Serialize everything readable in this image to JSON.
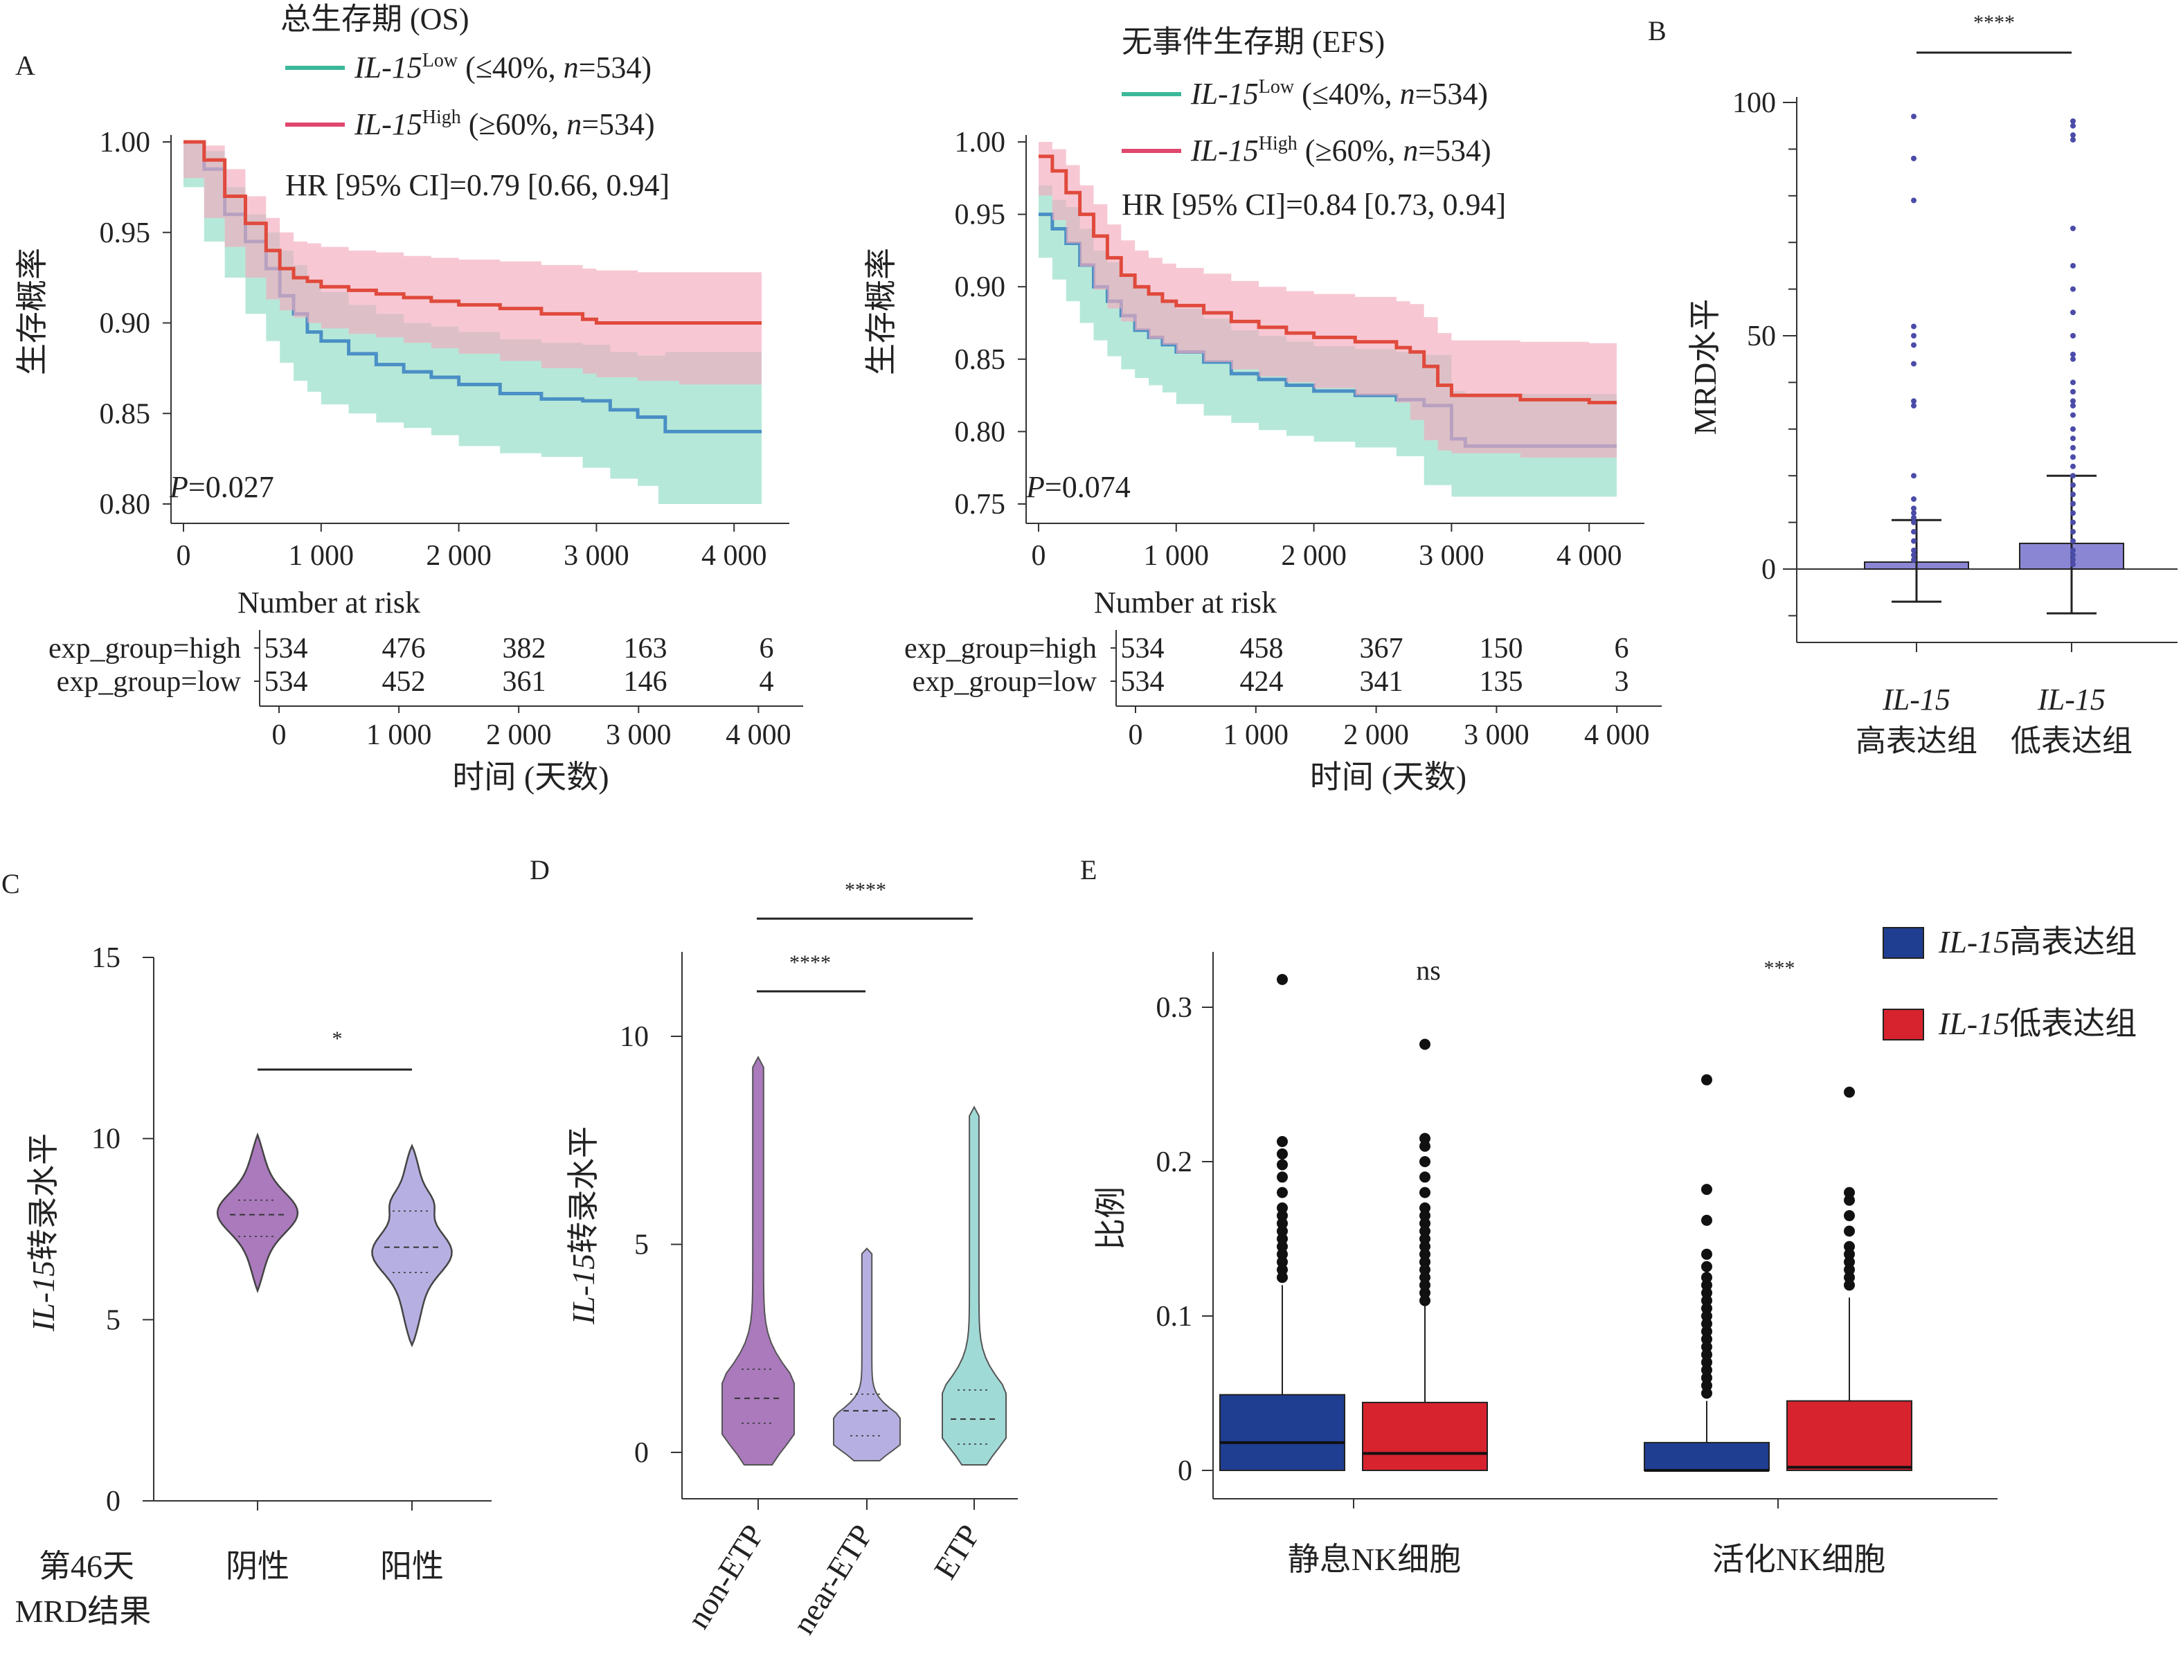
{
  "panel_letters": {
    "a": "A",
    "b": "B",
    "c": "C",
    "d": "D",
    "e": "E"
  },
  "colors": {
    "teal": "#3bb89a",
    "pink": "#e0476e",
    "teal_band": "#8fdcc4",
    "pink_band": "#f2aabd",
    "blue_line": "#4a8fc5",
    "red_line": "#e04a3c",
    "navy_box": "#1f3e92",
    "red_box": "#d7232e",
    "violin_purple": "#9b63b1",
    "violin_lav": "#a9a2dd",
    "violin_teal": "#8fd3d0",
    "mrd_box": "#8b86d4"
  },
  "km_shared": {
    "ylabel": "生存概率",
    "xlabel": "时间 (天数)",
    "risk_title": "Number at risk",
    "risk_rows": [
      "exp_group=high",
      "exp_group=low"
    ]
  },
  "chart_data": [
    {
      "type": "line",
      "panel": "A-OS",
      "title": "总生存期 (OS)",
      "legend": [
        {
          "gene": "IL-15",
          "sup": "Low",
          "detail": " (≤40%, ",
          "n": "n",
          "ndetail": "=534)"
        },
        {
          "gene": "IL-15",
          "sup": "High",
          "detail": " (≥60%, ",
          "n": "n",
          "ndetail": "=534)"
        }
      ],
      "hr": "HR [95% CI]=0.79 [0.66, 0.94]",
      "p_label": "P",
      "p_value": "=0.027",
      "xlim": [
        0,
        4200
      ],
      "ylim": [
        0.8,
        1.0
      ],
      "xticks": [
        0,
        1000,
        2000,
        3000,
        4000
      ],
      "xtick_labels": [
        "0",
        "1 000",
        "2 000",
        "3 000",
        "4 000"
      ],
      "yticks": [
        0.8,
        0.85,
        0.9,
        0.95,
        1.0
      ],
      "ytick_labels": [
        "0.80",
        "0.85",
        "0.90",
        "0.95",
        "1.00"
      ],
      "series": [
        {
          "color_key": "teal",
          "x": [
            0,
            150,
            300,
            450,
            600,
            700,
            800,
            900,
            1000,
            1200,
            1400,
            1600,
            1800,
            2000,
            2300,
            2600,
            2900,
            3100,
            3300,
            3450,
            3500,
            4000,
            4200
          ],
          "y": [
            1.0,
            0.985,
            0.96,
            0.945,
            0.93,
            0.915,
            0.905,
            0.895,
            0.89,
            0.883,
            0.877,
            0.873,
            0.87,
            0.866,
            0.861,
            0.858,
            0.857,
            0.852,
            0.848,
            0.848,
            0.84,
            0.84,
            0.84
          ],
          "band_lo": [
            1.0,
            0.975,
            0.945,
            0.925,
            0.905,
            0.89,
            0.878,
            0.868,
            0.862,
            0.855,
            0.85,
            0.845,
            0.842,
            0.838,
            0.832,
            0.828,
            0.826,
            0.82,
            0.814,
            0.81,
            0.8,
            0.8,
            0.8
          ],
          "band_hi": [
            1.0,
            0.995,
            0.975,
            0.96,
            0.95,
            0.94,
            0.932,
            0.922,
            0.917,
            0.91,
            0.905,
            0.9,
            0.898,
            0.895,
            0.891,
            0.889,
            0.888,
            0.884,
            0.882,
            0.882,
            0.884,
            0.884,
            0.884
          ]
        },
        {
          "color_key": "pink",
          "x": [
            0,
            150,
            300,
            450,
            600,
            700,
            800,
            900,
            1000,
            1200,
            1400,
            1600,
            1800,
            2000,
            2300,
            2600,
            2900,
            3000,
            3300,
            3600,
            4000,
            4200
          ],
          "y": [
            1.0,
            0.99,
            0.97,
            0.955,
            0.94,
            0.93,
            0.925,
            0.923,
            0.92,
            0.918,
            0.916,
            0.914,
            0.912,
            0.91,
            0.908,
            0.905,
            0.902,
            0.9,
            0.9,
            0.9,
            0.9,
            0.9
          ],
          "band_lo": [
            1.0,
            0.98,
            0.958,
            0.942,
            0.925,
            0.913,
            0.907,
            0.903,
            0.9,
            0.897,
            0.894,
            0.892,
            0.889,
            0.886,
            0.883,
            0.879,
            0.875,
            0.872,
            0.87,
            0.868,
            0.866,
            0.866
          ],
          "band_hi": [
            1.0,
            0.998,
            0.985,
            0.97,
            0.958,
            0.95,
            0.945,
            0.944,
            0.942,
            0.94,
            0.939,
            0.937,
            0.936,
            0.935,
            0.934,
            0.932,
            0.93,
            0.929,
            0.928,
            0.928,
            0.928,
            0.928
          ]
        }
      ],
      "risk_table": {
        "xticks": [
          0,
          1000,
          2000,
          3000,
          4000
        ],
        "xtick_labels": [
          "0",
          "1 000",
          "2 000",
          "3 000",
          "4 000"
        ],
        "high": [
          "534",
          "476",
          "382",
          "163",
          "6"
        ],
        "low": [
          "534",
          "452",
          "361",
          "146",
          "4"
        ]
      }
    },
    {
      "type": "line",
      "panel": "A-EFS",
      "title": "无事件生存期 (EFS)",
      "legend": [
        {
          "gene": "IL-15",
          "sup": "Low",
          "detail": " (≤40%, ",
          "n": "n",
          "ndetail": "=534)"
        },
        {
          "gene": "IL-15",
          "sup": "High",
          "detail": " (≥60%, ",
          "n": "n",
          "ndetail": "=534)"
        }
      ],
      "hr": "HR [95% CI]=0.84 [0.73, 0.94]",
      "p_label": "P",
      "p_value": "=0.074",
      "xlim": [
        0,
        4200
      ],
      "ylim": [
        0.75,
        1.0
      ],
      "xticks": [
        0,
        1000,
        2000,
        3000,
        4000
      ],
      "xtick_labels": [
        "0",
        "1 000",
        "2 000",
        "3 000",
        "4 000"
      ],
      "yticks": [
        0.75,
        0.8,
        0.85,
        0.9,
        0.95,
        1.0
      ],
      "ytick_labels": [
        "0.75",
        "0.80",
        "0.85",
        "0.90",
        "0.95",
        "1.00"
      ],
      "series": [
        {
          "color_key": "teal",
          "x": [
            0,
            100,
            200,
            300,
            400,
            500,
            600,
            700,
            800,
            900,
            1000,
            1200,
            1400,
            1600,
            1800,
            2000,
            2300,
            2600,
            2800,
            3000,
            3100,
            3500,
            4000,
            4200
          ],
          "y": [
            0.95,
            0.94,
            0.93,
            0.915,
            0.9,
            0.89,
            0.88,
            0.87,
            0.865,
            0.86,
            0.855,
            0.848,
            0.84,
            0.836,
            0.832,
            0.828,
            0.825,
            0.822,
            0.818,
            0.795,
            0.79,
            0.79,
            0.79,
            0.79
          ],
          "band_lo": [
            0.93,
            0.92,
            0.905,
            0.89,
            0.875,
            0.863,
            0.852,
            0.843,
            0.837,
            0.832,
            0.827,
            0.819,
            0.811,
            0.806,
            0.801,
            0.797,
            0.793,
            0.789,
            0.783,
            0.763,
            0.755,
            0.755,
            0.755,
            0.755
          ],
          "band_hi": [
            0.97,
            0.96,
            0.955,
            0.94,
            0.925,
            0.917,
            0.908,
            0.9,
            0.895,
            0.89,
            0.885,
            0.878,
            0.87,
            0.866,
            0.862,
            0.859,
            0.857,
            0.855,
            0.853,
            0.828,
            0.826,
            0.826,
            0.826,
            0.826
          ]
        },
        {
          "color_key": "pink",
          "x": [
            0,
            100,
            200,
            300,
            400,
            500,
            600,
            700,
            800,
            900,
            1000,
            1200,
            1400,
            1600,
            1800,
            2000,
            2300,
            2600,
            2700,
            2800,
            2900,
            3000,
            3500,
            4000,
            4200
          ],
          "y": [
            0.99,
            0.98,
            0.965,
            0.95,
            0.935,
            0.92,
            0.908,
            0.9,
            0.895,
            0.89,
            0.887,
            0.882,
            0.876,
            0.872,
            0.868,
            0.865,
            0.862,
            0.858,
            0.855,
            0.845,
            0.832,
            0.825,
            0.822,
            0.82,
            0.82
          ],
          "band_lo": [
            0.975,
            0.963,
            0.946,
            0.93,
            0.914,
            0.898,
            0.885,
            0.876,
            0.87,
            0.864,
            0.86,
            0.854,
            0.848,
            0.843,
            0.838,
            0.834,
            0.83,
            0.825,
            0.82,
            0.808,
            0.794,
            0.787,
            0.785,
            0.782,
            0.782
          ],
          "band_hi": [
            1.0,
            0.995,
            0.984,
            0.97,
            0.957,
            0.943,
            0.932,
            0.925,
            0.92,
            0.916,
            0.913,
            0.909,
            0.904,
            0.9,
            0.897,
            0.895,
            0.893,
            0.89,
            0.888,
            0.879,
            0.868,
            0.863,
            0.862,
            0.861,
            0.861
          ]
        }
      ],
      "risk_table": {
        "xticks": [
          0,
          1000,
          2000,
          3000,
          4000
        ],
        "xtick_labels": [
          "0",
          "1 000",
          "2 000",
          "3 000",
          "4 000"
        ],
        "high": [
          "534",
          "458",
          "367",
          "150",
          "6"
        ],
        "low": [
          "534",
          "424",
          "341",
          "135",
          "3"
        ]
      }
    },
    {
      "type": "bar",
      "panel": "B",
      "ylabel": "MRD水平",
      "ylim": [
        -15,
        100
      ],
      "yticks": [
        0,
        50,
        100
      ],
      "ytick_labels": [
        "0",
        "50",
        "100"
      ],
      "categories": [
        {
          "gene": "IL-15",
          "group": "高表达组"
        },
        {
          "gene": "IL-15",
          "group": "低表达组"
        }
      ],
      "means": [
        1.5,
        5.5
      ],
      "errors": [
        [
          -7,
          10.5
        ],
        [
          -9.5,
          20
        ]
      ],
      "outliers": [
        [
          97,
          88,
          79,
          52,
          50,
          48,
          44,
          36,
          35,
          20,
          15,
          13,
          12,
          11,
          10,
          8,
          6,
          4,
          3,
          2
        ],
        [
          96,
          95,
          93,
          92,
          73,
          65,
          60,
          55,
          50,
          46,
          45,
          40,
          38,
          36,
          35,
          33,
          30,
          28,
          26,
          24,
          22,
          20,
          18,
          16,
          14,
          12,
          10,
          8,
          6,
          4,
          3,
          2,
          1
        ]
      ],
      "significance": "****"
    },
    {
      "type": "violin",
      "panel": "C",
      "ylabel_gene": "IL-15",
      "ylabel_rest": "转录水平",
      "ylim": [
        0,
        15
      ],
      "yticks": [
        0,
        5,
        10,
        15
      ],
      "ytick_labels": [
        "0",
        "5",
        "10",
        "15"
      ],
      "group_title": "第46天\nMRD结果",
      "group_title_lines": [
        "第46天",
        "MRD结果"
      ],
      "categories": [
        "阴性",
        "阳性"
      ],
      "medians": [
        7.9,
        7.0
      ],
      "quartiles": [
        [
          7.3,
          8.3
        ],
        [
          6.3,
          8.0
        ]
      ],
      "ranges": [
        [
          5.8,
          10.1
        ],
        [
          4.3,
          9.8
        ]
      ],
      "significance": "*"
    },
    {
      "type": "violin",
      "panel": "D",
      "ylabel_gene": "IL-15",
      "ylabel_rest": "转录水平",
      "ylim": [
        -0.5,
        12
      ],
      "yticks": [
        0,
        5,
        10
      ],
      "ytick_labels": [
        "0",
        "5",
        "10"
      ],
      "categories": [
        "non-ETP",
        "near-ETP",
        "ETP"
      ],
      "medians": [
        1.3,
        1.0,
        0.8
      ],
      "quartiles": [
        [
          0.7,
          2.0
        ],
        [
          0.4,
          1.4
        ],
        [
          0.2,
          1.5
        ]
      ],
      "ranges": [
        [
          -0.3,
          9.5
        ],
        [
          -0.2,
          4.9
        ],
        [
          -0.3,
          8.3
        ]
      ],
      "significance": [
        "****",
        "****"
      ]
    },
    {
      "type": "box",
      "panel": "E",
      "ylabel": "比例",
      "ylim": [
        -0.01,
        0.34
      ],
      "yticks": [
        0,
        0.1,
        0.2,
        0.3
      ],
      "ytick_labels": [
        "0",
        "0.1",
        "0.2",
        "0.3"
      ],
      "categories": [
        "静息NK细胞",
        "活化NK细胞"
      ],
      "legend": [
        {
          "gene": "IL-15",
          "group": "高表达组"
        },
        {
          "gene": "IL-15",
          "group": "低表达组"
        }
      ],
      "series": [
        {
          "name_gene": "IL-15",
          "name_group": "高表达组",
          "color_key": "navy_box",
          "boxes": [
            {
              "q1": 0.0,
              "median": 0.018,
              "q3": 0.049,
              "whisker_hi": 0.12
            },
            {
              "q1": 0.0,
              "median": 0.0,
              "q3": 0.018,
              "whisker_hi": 0.045
            }
          ],
          "outliers": [
            [
              0.318,
              0.213,
              0.205,
              0.198,
              0.19,
              0.18,
              0.17,
              0.165,
              0.16,
              0.155,
              0.15,
              0.145,
              0.14,
              0.135,
              0.13,
              0.125
            ],
            [
              0.253,
              0.182,
              0.162,
              0.14,
              0.132,
              0.125,
              0.12,
              0.115,
              0.11,
              0.105,
              0.1,
              0.095,
              0.09,
              0.085,
              0.08,
              0.075,
              0.07,
              0.065,
              0.06,
              0.055,
              0.05
            ]
          ]
        },
        {
          "name_gene": "IL-15",
          "name_group": "低表达组",
          "color_key": "red_box",
          "boxes": [
            {
              "q1": 0.0,
              "median": 0.011,
              "q3": 0.044,
              "whisker_hi": 0.108
            },
            {
              "q1": 0.0,
              "median": 0.002,
              "q3": 0.045,
              "whisker_hi": 0.112
            }
          ],
          "outliers": [
            [
              0.276,
              0.215,
              0.21,
              0.2,
              0.19,
              0.18,
              0.17,
              0.165,
              0.16,
              0.155,
              0.15,
              0.145,
              0.14,
              0.135,
              0.13,
              0.125,
              0.12,
              0.115,
              0.11
            ],
            [
              0.245,
              0.18,
              0.175,
              0.165,
              0.155,
              0.145,
              0.14,
              0.135,
              0.13,
              0.125,
              0.12
            ]
          ]
        }
      ],
      "significance": [
        "ns",
        "***"
      ]
    }
  ]
}
